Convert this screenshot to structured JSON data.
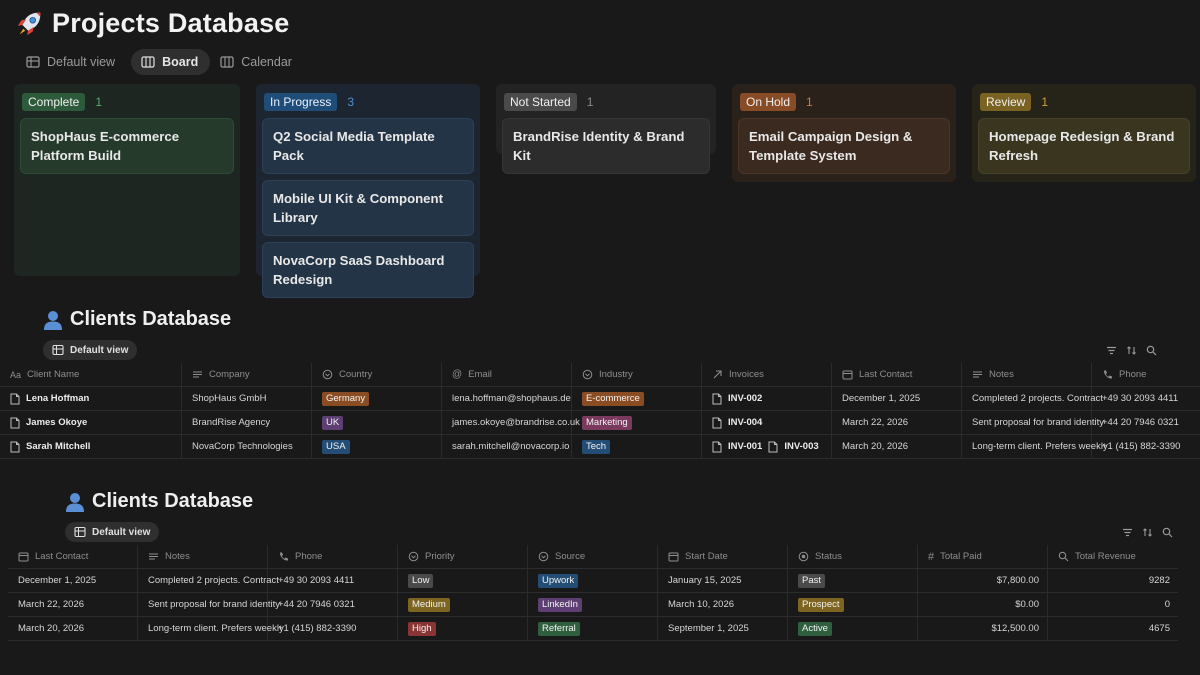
{
  "projects": {
    "title": "Projects Database",
    "tabs": [
      {
        "label": "Default view",
        "active": false
      },
      {
        "label": "Board",
        "active": true
      },
      {
        "label": "Calendar",
        "active": false
      }
    ],
    "columns": [
      {
        "status": "Complete",
        "count": "1",
        "cards": [
          "ShopHaus E-commerce Platform Build"
        ]
      },
      {
        "status": "In Progress",
        "count": "3",
        "cards": [
          "Q2 Social Media Template Pack",
          "Mobile UI Kit & Component Library",
          "NovaCorp SaaS Dashboard Redesign"
        ]
      },
      {
        "status": "Not Started",
        "count": "1",
        "cards": [
          "BrandRise Identity & Brand Kit"
        ]
      },
      {
        "status": "On Hold",
        "count": "1",
        "cards": [
          "Email Campaign Design & Template System"
        ]
      },
      {
        "status": "Review",
        "count": "1",
        "cards": [
          "Homepage Redesign & Brand Refresh"
        ]
      }
    ]
  },
  "clients1": {
    "title": "Clients Database",
    "view_label": "Default view",
    "headers": [
      "Client Name",
      "Company",
      "Country",
      "Email",
      "Industry",
      "Invoices",
      "Last Contact",
      "Notes",
      "Phone"
    ],
    "rows": [
      {
        "name": "Lena Hoffman",
        "company": "ShopHaus GmbH",
        "country": "Germany",
        "email": "lena.hoffman@shophaus.de",
        "industry": "E-commerce",
        "invoice1": "INV-002",
        "invoice2": "",
        "last_contact": "December 1, 2025",
        "notes": "Completed 2 projects. Contract",
        "phone": "+49 30 2093 4411"
      },
      {
        "name": "James Okoye",
        "company": "BrandRise Agency",
        "country": "UK",
        "email": "james.okoye@brandrise.co.uk",
        "industry": "Marketing",
        "invoice1": "INV-004",
        "invoice2": "",
        "last_contact": "March 22, 2026",
        "notes": "Sent proposal for brand identity",
        "phone": "+44 20 7946 0321"
      },
      {
        "name": "Sarah Mitchell",
        "company": "NovaCorp Technologies",
        "country": "USA",
        "email": "sarah.mitchell@novacorp.io",
        "industry": "Tech",
        "invoice1": "INV-001",
        "invoice2": "INV-003",
        "last_contact": "March 20, 2026",
        "notes": "Long-term client. Prefers weekly",
        "phone": "+1 (415) 882-3390"
      }
    ]
  },
  "clients2": {
    "title": "Clients Database",
    "view_label": "Default view",
    "headers": [
      "Last Contact",
      "Notes",
      "Phone",
      "Priority",
      "Source",
      "Start Date",
      "Status",
      "Total Paid",
      "Total Revenue"
    ],
    "rows": [
      {
        "last_contact": "December 1, 2025",
        "notes": "Completed 2 projects. Contract",
        "phone": "+49 30 2093 4411",
        "priority": "Low",
        "source": "Upwork",
        "start_date": "January 15, 2025",
        "status": "Past",
        "total_paid": "$7,800.00",
        "total_revenue": "9282"
      },
      {
        "last_contact": "March 22, 2026",
        "notes": "Sent proposal for brand identity",
        "phone": "+44 20 7946 0321",
        "priority": "Medium",
        "source": "LinkedIn",
        "start_date": "March 10, 2026",
        "status": "Prospect",
        "total_paid": "$0.00",
        "total_revenue": "0"
      },
      {
        "last_contact": "March 20, 2026",
        "notes": "Long-term client. Prefers weekly",
        "phone": "+1 (415) 882-3390",
        "priority": "High",
        "source": "Referral",
        "start_date": "September 1, 2025",
        "status": "Active",
        "total_paid": "$12,500.00",
        "total_revenue": "4675"
      }
    ]
  }
}
